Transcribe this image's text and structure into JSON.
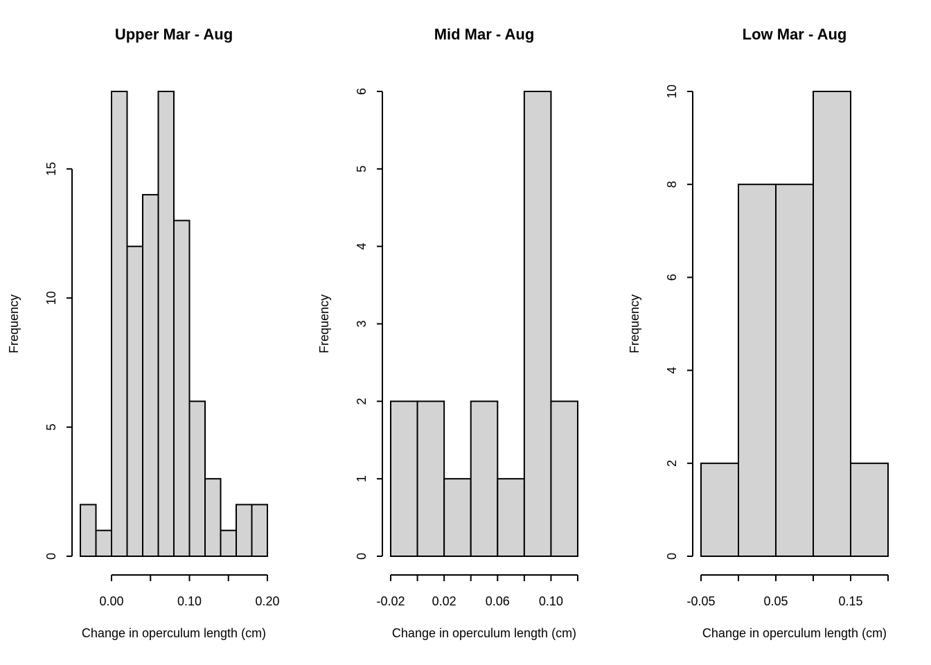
{
  "figure": {
    "background": "#ffffff",
    "bar_fill": "#d3d3d3",
    "bar_stroke": "#000000",
    "axis_color": "#000000",
    "text_color": "#000000"
  },
  "chart_data": [
    {
      "type": "bar",
      "chart_kind": "histogram",
      "title": "Upper Mar - Aug",
      "xlabel": "Change in operculum length (cm)",
      "ylabel": "Frequency",
      "bin_start": -0.04,
      "bin_width": 0.02,
      "counts": [
        2,
        1,
        18,
        12,
        14,
        18,
        13,
        6,
        3,
        1,
        2,
        2
      ],
      "xlim": [
        -0.04,
        0.2
      ],
      "ylim": [
        0,
        18
      ],
      "x_ticks": [
        0,
        0.05,
        0.1,
        0.15,
        0.2
      ],
      "x_tick_labels": [
        {
          "value": 0,
          "text": "0.00"
        },
        {
          "value": 0.1,
          "text": "0.10"
        },
        {
          "value": 0.2,
          "text": "0.20"
        }
      ],
      "y_ticks": [
        0,
        5,
        10,
        15
      ],
      "grid": false,
      "legend": false
    },
    {
      "type": "bar",
      "chart_kind": "histogram",
      "title": "Mid Mar - Aug",
      "xlabel": "Change in operculum length (cm)",
      "ylabel": "Frequency",
      "bin_start": -0.02,
      "bin_width": 0.02,
      "counts": [
        2,
        2,
        1,
        2,
        1,
        6,
        2
      ],
      "xlim": [
        -0.02,
        0.12
      ],
      "ylim": [
        0,
        6
      ],
      "x_ticks": [
        -0.02,
        0,
        0.02,
        0.04,
        0.06,
        0.08,
        0.1,
        0.12
      ],
      "x_tick_labels": [
        {
          "value": -0.02,
          "text": "-0.02"
        },
        {
          "value": 0.02,
          "text": "0.02"
        },
        {
          "value": 0.06,
          "text": "0.06"
        },
        {
          "value": 0.1,
          "text": "0.10"
        }
      ],
      "y_ticks": [
        0,
        1,
        2,
        3,
        4,
        5,
        6
      ],
      "grid": false,
      "legend": false
    },
    {
      "type": "bar",
      "chart_kind": "histogram",
      "title": "Low Mar - Aug",
      "xlabel": "Change in operculum length (cm)",
      "ylabel": "Frequency",
      "bin_start": -0.05,
      "bin_width": 0.05,
      "counts": [
        2,
        8,
        8,
        10,
        2
      ],
      "xlim": [
        -0.05,
        0.2
      ],
      "ylim": [
        0,
        10
      ],
      "x_ticks": [
        -0.05,
        0,
        0.05,
        0.1,
        0.15,
        0.2
      ],
      "x_tick_labels": [
        {
          "value": -0.05,
          "text": "-0.05"
        },
        {
          "value": 0.05,
          "text": "0.05"
        },
        {
          "value": 0.15,
          "text": "0.15"
        }
      ],
      "y_ticks": [
        0,
        2,
        4,
        6,
        8,
        10
      ],
      "grid": false,
      "legend": false
    }
  ]
}
